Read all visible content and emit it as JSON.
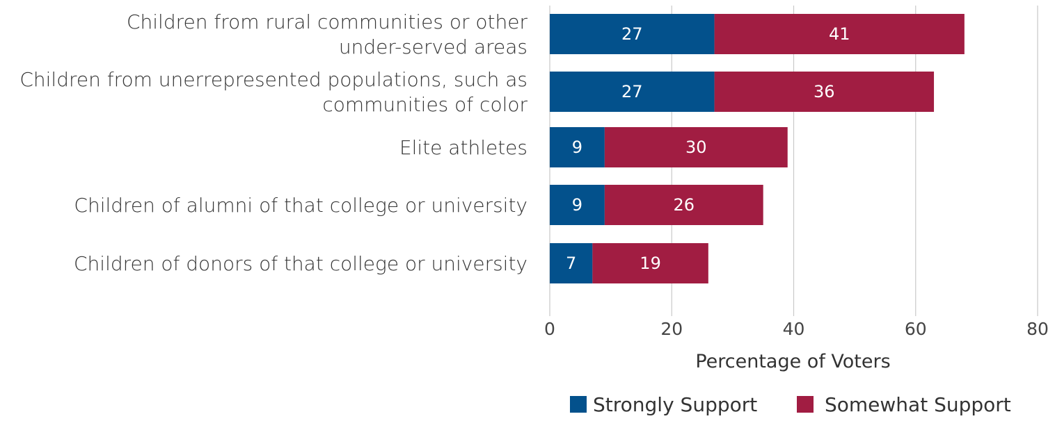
{
  "chart_data": {
    "type": "bar",
    "orientation": "horizontal",
    "stacked": true,
    "categories": [
      [
        "Children from rural communities or other",
        "under-served areas"
      ],
      [
        "Children from unerrepresented populations, such as",
        "communities of color"
      ],
      [
        "Elite athletes"
      ],
      [
        "Children of alumni of that college or university"
      ],
      [
        "Children of donors of that college or university"
      ]
    ],
    "series": [
      {
        "name": "Strongly Support",
        "color": "#03518c",
        "values": [
          27,
          27,
          9,
          9,
          7
        ],
        "labels": [
          "27",
          "27",
          "9",
          "9",
          "7"
        ]
      },
      {
        "name": "Somewhat Support",
        "color": "#a11d42",
        "values": [
          41,
          36,
          30,
          26,
          19
        ],
        "labels": [
          "41",
          "36",
          "30",
          "26",
          "19"
        ]
      }
    ],
    "xlabel": "Percentage of Voters",
    "xlim": [
      0,
      80
    ],
    "xticks": [
      "0",
      "20",
      "40",
      "60",
      "80"
    ],
    "grid": true,
    "legend_position": "bottom"
  }
}
